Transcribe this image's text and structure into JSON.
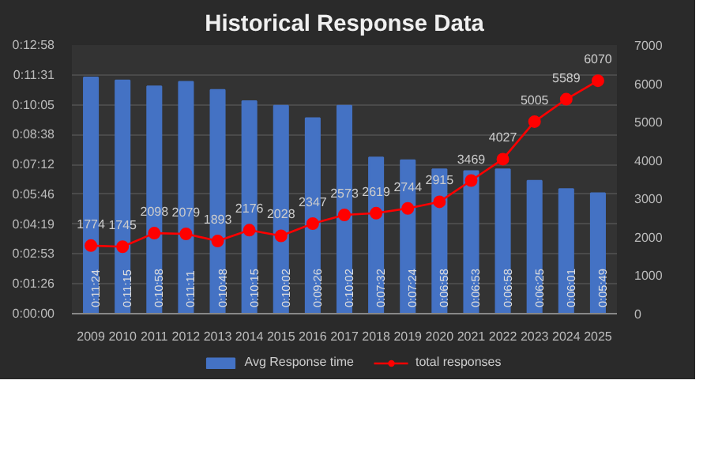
{
  "chart_data": {
    "type": "bar",
    "title": "Historical Response Data",
    "categories": [
      "2009",
      "2010",
      "2011",
      "2012",
      "2013",
      "2014",
      "2015",
      "2016",
      "2017",
      "2018",
      "2019",
      "2020",
      "2021",
      "2022",
      "2023",
      "2024",
      "2025"
    ],
    "series": [
      {
        "name": "Avg Response time",
        "color": "#4472c4",
        "values": [
          684,
          675,
          658,
          671,
          648,
          615,
          602,
          566,
          602,
          452,
          444,
          418,
          413,
          418,
          385,
          361,
          349
        ],
        "value_labels": [
          "0:11:24",
          "0:11:15",
          "0:10:58",
          "0:11:11",
          "0:10:48",
          "0:10:15",
          "0:10:02",
          "0:09:26",
          "0:10:02",
          "0:07:32",
          "0:07:24",
          "0:06:58",
          "0:06:53",
          "0:06:58",
          "0:06:25",
          "0:06:01",
          "0:05:49"
        ]
      },
      {
        "name": "total responses",
        "type": "line",
        "axis": "y2",
        "color": "#ff0000",
        "marker": "circle",
        "values": [
          1774,
          1745,
          2098,
          2079,
          1893,
          2176,
          2028,
          2347,
          2573,
          2619,
          2744,
          2915,
          3469,
          4027,
          5005,
          5589,
          6070
        ]
      }
    ],
    "ylim": [
      0,
      777.6
    ],
    "yticks": [
      {
        "value": 0,
        "label": "0:00:00"
      },
      {
        "value": 86.4,
        "label": "0:01:26"
      },
      {
        "value": 172.8,
        "label": "0:02:53"
      },
      {
        "value": 259.2,
        "label": "0:04:19"
      },
      {
        "value": 345.6,
        "label": "0:05:46"
      },
      {
        "value": 432,
        "label": "0:07:12"
      },
      {
        "value": 518.4,
        "label": "0:08:38"
      },
      {
        "value": 604.8,
        "label": "0:10:05"
      },
      {
        "value": 691.2,
        "label": "0:11:31"
      },
      {
        "value": 777.6,
        "label": "0:12:58"
      }
    ],
    "y2lim": [
      0,
      7000
    ],
    "y2ticks": [
      0,
      1000,
      2000,
      3000,
      4000,
      5000,
      6000,
      7000
    ],
    "data_labels": true,
    "grid": "y",
    "legend": "bottom"
  }
}
